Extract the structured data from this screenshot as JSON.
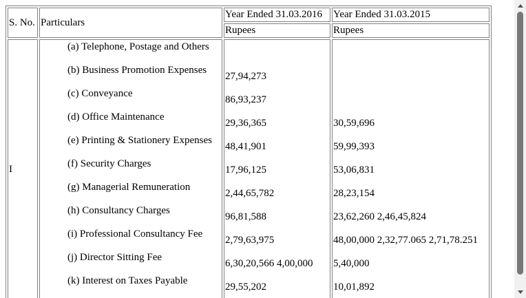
{
  "table": {
    "headers": {
      "sno": "S. No.",
      "particulars": "Particulars",
      "year_2016": "Year Ended 31.03.2016",
      "year_2015": "Year Ended 31.03.2015",
      "unit_2016": "Rupees",
      "unit_2015": "Rupees"
    },
    "section": "I",
    "rows": [
      {
        "particular": "(a) Telephone, Postage and Others",
        "y2016": "",
        "y2015": ""
      },
      {
        "particular": "(b) Business Promotion Expenses",
        "y2016": "27,94,273",
        "y2015": ""
      },
      {
        "particular": "(c) Conveyance",
        "y2016": "86,93,237",
        "y2015": ""
      },
      {
        "particular": "(d) Office Maintenance",
        "y2016": "29,36,365",
        "y2015": "30,59,696"
      },
      {
        "particular": "(e) Printing & Stationery Expenses",
        "y2016": "48,41,901",
        "y2015": "59,99,393"
      },
      {
        "particular": "(f) Security Charges",
        "y2016": "17,96,125",
        "y2015": "53,06,831"
      },
      {
        "particular": "(g) Managerial Remuneration",
        "y2016": "2,44,65,782",
        "y2015": "28,23,154"
      },
      {
        "particular": "(h) Consultancy Charges",
        "y2016": "96,81,588",
        "y2015": "23,62,260 2,46,45,824"
      },
      {
        "particular": "(i) Professional Consultancy Fee",
        "y2016": "2,79,63,975",
        "y2015": "48,00,000 2,32,77.065 2,71,78.251"
      },
      {
        "particular": "(j) Director Sitting Fee",
        "y2016": "6,30,20,566 4,00,000",
        "y2015": "5,40,000"
      },
      {
        "particular": "(k) Interest on Taxes Payable",
        "y2016": "29,55,202",
        "y2015": "10,01,892"
      }
    ]
  }
}
